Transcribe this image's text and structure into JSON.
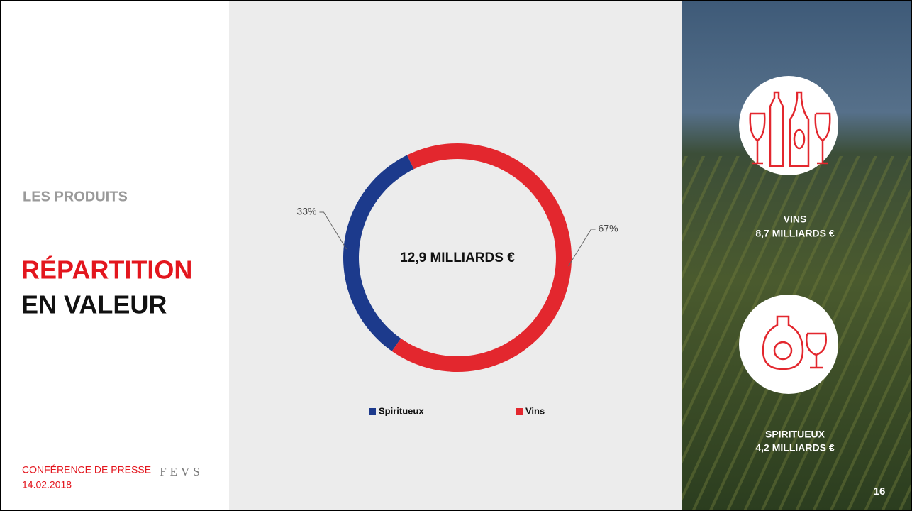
{
  "section": "LES PRODUITS",
  "heading": [
    "RÉPARTITION",
    "EN VALEUR"
  ],
  "footer": {
    "event": "CONFÉRENCE DE PRESSE",
    "date": "14.02.2018",
    "logo": "FEVS"
  },
  "sidebar": [
    {
      "label": "VINS",
      "amount": "8,7 MILLIARDS €"
    },
    {
      "label": "SPIRITUEUX",
      "amount": "4,2 MILLIARDS €"
    }
  ],
  "page_number": "16",
  "chart_data": {
    "type": "pie",
    "annotation": "12,9 MILLIARDS €",
    "categories": [
      "Spiritueux",
      "Vins"
    ],
    "values": [
      33,
      67
    ],
    "value_labels": [
      "33%",
      "67%"
    ],
    "colors": [
      "#1c3a8c",
      "#e3272e"
    ],
    "legend": "bottom"
  }
}
